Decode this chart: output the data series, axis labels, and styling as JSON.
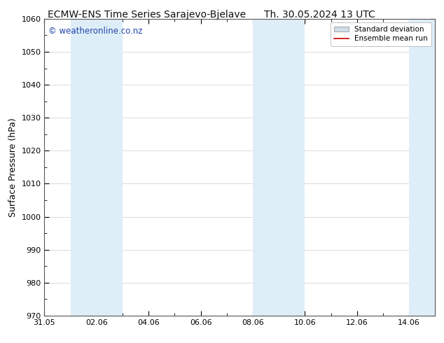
{
  "title_left": "ECMW-ENS Time Series Sarajevo-Bjelave",
  "title_right": "Th. 30.05.2024 13 UTC",
  "ylabel": "Surface Pressure (hPa)",
  "ylim": [
    970,
    1060
  ],
  "yticks": [
    970,
    980,
    990,
    1000,
    1010,
    1020,
    1030,
    1040,
    1050,
    1060
  ],
  "xtick_labels": [
    "31.05",
    "02.06",
    "04.06",
    "06.06",
    "08.06",
    "10.06",
    "12.06",
    "14.06"
  ],
  "xtick_positions": [
    0,
    2,
    4,
    6,
    8,
    10,
    12,
    14
  ],
  "xlim": [
    0,
    15
  ],
  "shaded_bands": [
    {
      "x_start": 1,
      "x_end": 3,
      "color": "#deeef8"
    },
    {
      "x_start": 8,
      "x_end": 10,
      "color": "#deeef8"
    },
    {
      "x_start": 14,
      "x_end": 15,
      "color": "#deeef8"
    }
  ],
  "mean_line_color": "#cc0000",
  "watermark_text": "© weatheronline.co.nz",
  "watermark_color": "#2244aa",
  "watermark_fontsize": 8.5,
  "title_fontsize": 10,
  "legend_std_facecolor": "#d0dde8",
  "legend_std_edgecolor": "#aaaaaa",
  "legend_mean_color": "#cc0000",
  "bg_color": "#ffffff",
  "plot_bg_color": "#ffffff",
  "grid_color": "#cccccc",
  "tick_label_fontsize": 8,
  "ylabel_fontsize": 9,
  "minor_xtick_interval": 1
}
